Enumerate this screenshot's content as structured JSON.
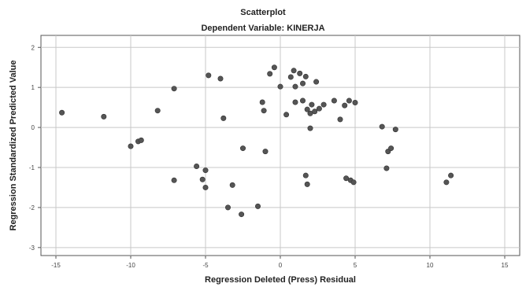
{
  "chart_data": {
    "type": "scatter",
    "title": "Scatterplot",
    "subtitle": "Dependent Variable: KINERJA",
    "xlabel": "Regression Deleted (Press) Residual",
    "ylabel": "Regression Standardized Predicted Value",
    "xlim": [
      -16,
      16
    ],
    "ylim": [
      -3.2,
      2.3
    ],
    "xticks": [
      -15,
      -10,
      -5,
      0,
      5,
      10,
      15
    ],
    "yticks": [
      2,
      1,
      0,
      -1,
      -2,
      -3
    ],
    "xtick_labels": [
      "-15",
      "-10",
      "-5",
      "0",
      "5",
      "10",
      "15"
    ],
    "ytick_labels": [
      "2",
      "1",
      "0",
      "-1",
      "-2",
      "-3"
    ],
    "grid": true,
    "marker_color": "#555555",
    "points": [
      {
        "x": -14.6,
        "y": 0.37
      },
      {
        "x": -11.8,
        "y": 0.27
      },
      {
        "x": -10.0,
        "y": -0.47
      },
      {
        "x": -9.5,
        "y": -0.35
      },
      {
        "x": -9.3,
        "y": -0.32
      },
      {
        "x": -8.2,
        "y": 0.42
      },
      {
        "x": -7.1,
        "y": 0.97
      },
      {
        "x": -7.1,
        "y": -1.32
      },
      {
        "x": -4.8,
        "y": 1.3
      },
      {
        "x": -4.0,
        "y": 1.22
      },
      {
        "x": -3.8,
        "y": 0.23
      },
      {
        "x": -5.6,
        "y": -0.97
      },
      {
        "x": -5.2,
        "y": -1.3
      },
      {
        "x": -5.0,
        "y": -1.07
      },
      {
        "x": -5.0,
        "y": -1.5
      },
      {
        "x": -3.2,
        "y": -1.44
      },
      {
        "x": -3.5,
        "y": -2.0
      },
      {
        "x": -2.6,
        "y": -2.17
      },
      {
        "x": -1.5,
        "y": -1.97
      },
      {
        "x": -2.5,
        "y": -0.52
      },
      {
        "x": -1.0,
        "y": -0.6
      },
      {
        "x": -1.2,
        "y": 0.63
      },
      {
        "x": -1.1,
        "y": 0.42
      },
      {
        "x": -0.7,
        "y": 1.34
      },
      {
        "x": -0.4,
        "y": 1.5
      },
      {
        "x": 0.0,
        "y": 1.02
      },
      {
        "x": 0.4,
        "y": 0.32
      },
      {
        "x": 0.7,
        "y": 1.26
      },
      {
        "x": 0.9,
        "y": 1.42
      },
      {
        "x": 1.0,
        "y": 1.02
      },
      {
        "x": 1.3,
        "y": 1.35
      },
      {
        "x": 1.5,
        "y": 1.1
      },
      {
        "x": 1.7,
        "y": 1.27
      },
      {
        "x": 2.4,
        "y": 1.14
      },
      {
        "x": 1.0,
        "y": 0.63
      },
      {
        "x": 1.5,
        "y": 0.67
      },
      {
        "x": 1.8,
        "y": 0.45
      },
      {
        "x": 2.1,
        "y": 0.57
      },
      {
        "x": 2.3,
        "y": 0.4
      },
      {
        "x": 2.0,
        "y": 0.35
      },
      {
        "x": 2.6,
        "y": 0.47
      },
      {
        "x": 2.9,
        "y": 0.57
      },
      {
        "x": 3.6,
        "y": 0.67
      },
      {
        "x": 4.0,
        "y": 0.2
      },
      {
        "x": 4.3,
        "y": 0.55
      },
      {
        "x": 4.6,
        "y": 0.67
      },
      {
        "x": 5.0,
        "y": 0.62
      },
      {
        "x": 2.0,
        "y": -0.02
      },
      {
        "x": 1.7,
        "y": -1.2
      },
      {
        "x": 1.8,
        "y": -1.42
      },
      {
        "x": 4.4,
        "y": -1.27
      },
      {
        "x": 4.7,
        "y": -1.32
      },
      {
        "x": 4.9,
        "y": -1.37
      },
      {
        "x": 6.8,
        "y": 0.02
      },
      {
        "x": 7.7,
        "y": -0.05
      },
      {
        "x": 7.2,
        "y": -0.6
      },
      {
        "x": 7.4,
        "y": -0.52
      },
      {
        "x": 7.1,
        "y": -1.02
      },
      {
        "x": 11.4,
        "y": -1.2
      },
      {
        "x": 11.1,
        "y": -1.37
      }
    ]
  }
}
